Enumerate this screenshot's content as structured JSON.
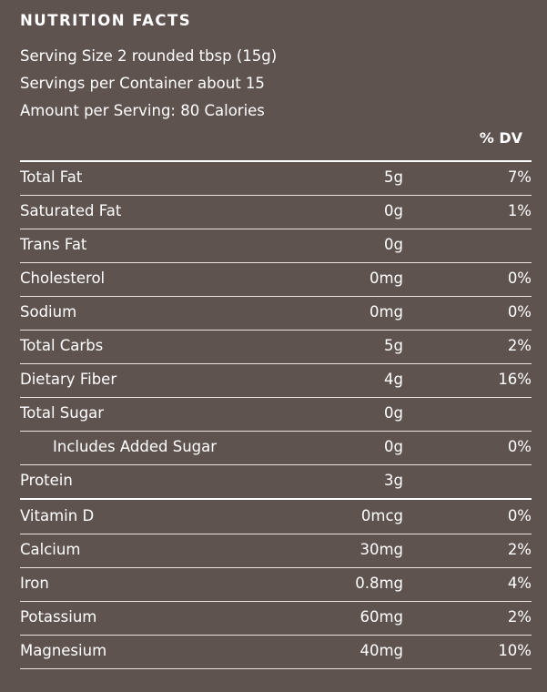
{
  "title": "NUTRITION FACTS",
  "serving_size": "Serving Size 2 rounded tbsp (15g)",
  "servings_per_container": "Servings per Container about 15",
  "amount_per_serving": "Amount per Serving: 80 Calories",
  "dv_header": "% DV",
  "nutrients": [
    {
      "name": "Total Fat",
      "amount": "5g",
      "dv": "7%"
    },
    {
      "name": "Saturated Fat",
      "amount": "0g",
      "dv": "1%"
    },
    {
      "name": "Trans Fat",
      "amount": "0g",
      "dv": ""
    },
    {
      "name": "Cholesterol",
      "amount": "0mg",
      "dv": "0%"
    },
    {
      "name": "Sodium",
      "amount": "0mg",
      "dv": "0%"
    },
    {
      "name": "Total Carbs",
      "amount": "5g",
      "dv": "2%"
    },
    {
      "name": "Dietary Fiber",
      "amount": "4g",
      "dv": "16%"
    },
    {
      "name": "Total Sugar",
      "amount": "0g",
      "dv": ""
    },
    {
      "name": "Includes Added Sugar",
      "amount": "0g",
      "dv": "0%"
    },
    {
      "name": "Protein",
      "amount": "3g",
      "dv": ""
    }
  ],
  "vitamins": [
    {
      "name": "Vitamin D",
      "amount": "0mcg",
      "dv": "0%"
    },
    {
      "name": "Calcium",
      "amount": "30mg",
      "dv": "2%"
    },
    {
      "name": "Iron",
      "amount": "0.8mg",
      "dv": "4%"
    },
    {
      "name": "Potassium",
      "amount": "60mg",
      "dv": "2%"
    },
    {
      "name": "Magnesium",
      "amount": "40mg",
      "dv": "10%"
    }
  ]
}
